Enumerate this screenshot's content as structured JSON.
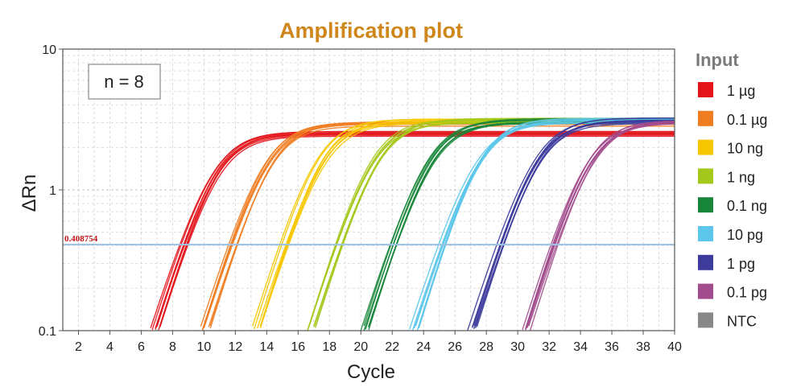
{
  "chart_data": {
    "type": "line",
    "title": "Amplification plot",
    "xlabel": "Cycle",
    "ylabel": "ΔRn",
    "xlim": [
      1,
      40
    ],
    "ylim": [
      0.1,
      10
    ],
    "yscale": "log",
    "grid": true,
    "xticks": [
      2,
      4,
      6,
      8,
      10,
      12,
      14,
      16,
      18,
      20,
      22,
      24,
      26,
      28,
      30,
      32,
      34,
      36,
      38,
      40
    ],
    "yticks": [
      {
        "value": 0.1,
        "label": "0.1"
      },
      {
        "value": 1,
        "label": "1"
      },
      {
        "value": 10,
        "label": "10"
      }
    ],
    "threshold": {
      "value": 0.408754,
      "label": "0.408754",
      "color": "#9dc3e6",
      "label_color": "#c0141b"
    },
    "annotation": "n = 8",
    "legend_title": "Input",
    "legend_position": "right",
    "replicates": 8,
    "series": [
      {
        "name": "1 µg",
        "color": "#e3141b",
        "midpoint": 10.8,
        "plateau": 2.5,
        "slope": 1.2
      },
      {
        "name": "0.1 µg",
        "color": "#ef7d22",
        "midpoint": 14.1,
        "plateau": 2.95,
        "slope": 1.2
      },
      {
        "name": "10 ng",
        "color": "#f6c600",
        "midpoint": 17.4,
        "plateau": 3.1,
        "slope": 1.2
      },
      {
        "name": "1 ng",
        "color": "#a5c81c",
        "midpoint": 20.9,
        "plateau": 3.1,
        "slope": 1.2
      },
      {
        "name": "0.1 ng",
        "color": "#17863a",
        "midpoint": 24.3,
        "plateau": 3.1,
        "slope": 1.2
      },
      {
        "name": "10 pg",
        "color": "#5cc7ea",
        "midpoint": 27.5,
        "plateau": 3.1,
        "slope": 1.2
      },
      {
        "name": "1 pg",
        "color": "#3d3b9c",
        "midpoint": 31.2,
        "plateau": 3.1,
        "slope": 1.2
      },
      {
        "name": "0.1 pg",
        "color": "#a24c8d",
        "midpoint": 34.6,
        "plateau": 3.1,
        "slope": 1.2
      },
      {
        "name": "NTC",
        "color": "#888888",
        "midpoint": null,
        "plateau": null,
        "slope": null
      }
    ]
  }
}
